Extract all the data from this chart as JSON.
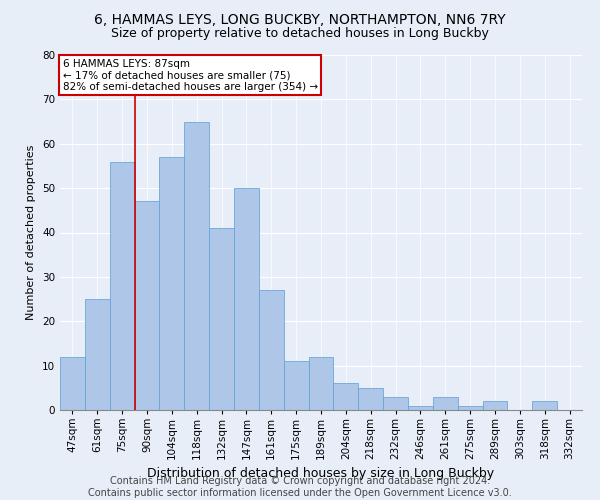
{
  "title": "6, HAMMAS LEYS, LONG BUCKBY, NORTHAMPTON, NN6 7RY",
  "subtitle": "Size of property relative to detached houses in Long Buckby",
  "xlabel": "Distribution of detached houses by size in Long Buckby",
  "ylabel": "Number of detached properties",
  "categories": [
    "47sqm",
    "61sqm",
    "75sqm",
    "90sqm",
    "104sqm",
    "118sqm",
    "132sqm",
    "147sqm",
    "161sqm",
    "175sqm",
    "189sqm",
    "204sqm",
    "218sqm",
    "232sqm",
    "246sqm",
    "261sqm",
    "275sqm",
    "289sqm",
    "303sqm",
    "318sqm",
    "332sqm"
  ],
  "values": [
    12,
    25,
    56,
    47,
    57,
    65,
    41,
    50,
    27,
    11,
    12,
    6,
    5,
    3,
    1,
    3,
    1,
    2,
    0,
    2,
    0
  ],
  "bar_color": "#aec6e8",
  "bar_edge_color": "#5a9fd4",
  "vline_x_index": 3,
  "annotation_text_line1": "6 HAMMAS LEYS: 87sqm",
  "annotation_text_line2": "← 17% of detached houses are smaller (75)",
  "annotation_text_line3": "82% of semi-detached houses are larger (354) →",
  "annotation_box_color": "#ffffff",
  "annotation_box_edge_color": "#cc0000",
  "vline_color": "#cc0000",
  "ylim": [
    0,
    80
  ],
  "yticks": [
    0,
    10,
    20,
    30,
    40,
    50,
    60,
    70,
    80
  ],
  "background_color": "#e8eef8",
  "footer_line1": "Contains HM Land Registry data © Crown copyright and database right 2024.",
  "footer_line2": "Contains public sector information licensed under the Open Government Licence v3.0.",
  "title_fontsize": 10,
  "subtitle_fontsize": 9,
  "xlabel_fontsize": 9,
  "ylabel_fontsize": 8,
  "tick_fontsize": 7.5,
  "footer_fontsize": 7
}
